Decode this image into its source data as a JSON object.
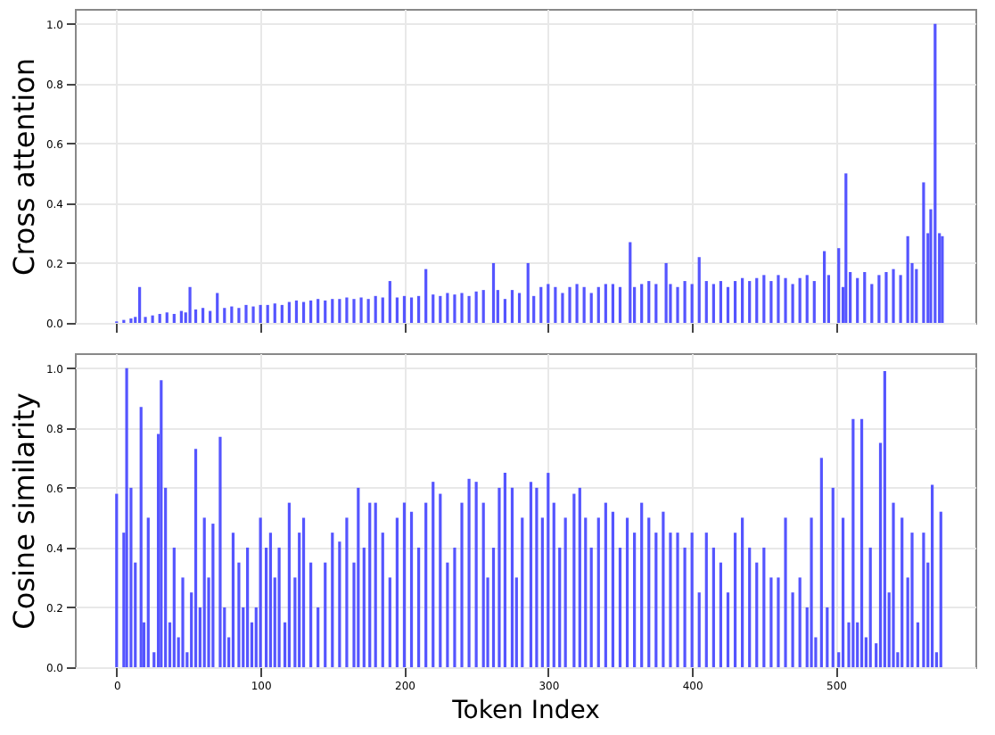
{
  "chart_data": [
    {
      "type": "bar",
      "ylabel": "Cross attention",
      "color": "#4c4cff",
      "grid": true,
      "tick_labels": "y",
      "xlim": [
        -29,
        597
      ],
      "ylim": [
        0,
        1.05
      ],
      "xticks": [
        0,
        100,
        200,
        300,
        400,
        500
      ],
      "yticks": [
        {
          "value": 0,
          "label": "0.0"
        },
        {
          "value": 0.2,
          "label": "0.2"
        },
        {
          "value": 0.4,
          "label": "0.4"
        },
        {
          "value": 0.6,
          "label": "0.6"
        },
        {
          "value": 0.8,
          "label": "0.8"
        },
        {
          "value": 1,
          "label": "1.0"
        }
      ],
      "x": [
        0,
        5,
        10,
        13,
        16,
        20,
        25,
        30,
        35,
        40,
        45,
        48,
        51,
        55,
        60,
        65,
        70,
        75,
        80,
        85,
        90,
        95,
        100,
        105,
        110,
        115,
        120,
        125,
        130,
        135,
        140,
        145,
        150,
        155,
        160,
        165,
        170,
        175,
        180,
        185,
        190,
        195,
        200,
        205,
        210,
        215,
        220,
        225,
        230,
        235,
        240,
        245,
        250,
        255,
        262,
        265,
        270,
        275,
        280,
        286,
        290,
        295,
        300,
        305,
        310,
        315,
        320,
        325,
        330,
        335,
        340,
        345,
        350,
        357,
        360,
        365,
        370,
        375,
        382,
        385,
        390,
        395,
        400,
        405,
        410,
        415,
        420,
        425,
        430,
        435,
        440,
        445,
        450,
        455,
        460,
        465,
        470,
        475,
        480,
        485,
        492,
        495,
        502,
        505,
        507,
        510,
        515,
        520,
        525,
        530,
        535,
        540,
        545,
        550,
        553,
        556,
        561,
        564,
        566,
        569,
        572,
        574
      ],
      "values": [
        0.005,
        0.01,
        0.015,
        0.02,
        0.12,
        0.02,
        0.025,
        0.03,
        0.035,
        0.03,
        0.04,
        0.035,
        0.12,
        0.045,
        0.05,
        0.04,
        0.1,
        0.05,
        0.055,
        0.05,
        0.06,
        0.055,
        0.06,
        0.06,
        0.065,
        0.06,
        0.07,
        0.075,
        0.07,
        0.075,
        0.08,
        0.075,
        0.08,
        0.08,
        0.085,
        0.08,
        0.085,
        0.08,
        0.09,
        0.085,
        0.14,
        0.085,
        0.09,
        0.085,
        0.09,
        0.18,
        0.095,
        0.09,
        0.1,
        0.095,
        0.1,
        0.09,
        0.105,
        0.11,
        0.2,
        0.11,
        0.08,
        0.11,
        0.1,
        0.2,
        0.09,
        0.12,
        0.13,
        0.12,
        0.1,
        0.12,
        0.13,
        0.12,
        0.1,
        0.12,
        0.13,
        0.13,
        0.12,
        0.27,
        0.12,
        0.13,
        0.14,
        0.13,
        0.2,
        0.13,
        0.12,
        0.14,
        0.13,
        0.22,
        0.14,
        0.13,
        0.14,
        0.12,
        0.14,
        0.15,
        0.14,
        0.15,
        0.16,
        0.14,
        0.16,
        0.15,
        0.13,
        0.15,
        0.16,
        0.14,
        0.24,
        0.16,
        0.25,
        0.12,
        0.5,
        0.17,
        0.15,
        0.17,
        0.13,
        0.16,
        0.17,
        0.18,
        0.16,
        0.29,
        0.2,
        0.18,
        0.47,
        0.3,
        0.38,
        1.0,
        0.3,
        0.29
      ]
    },
    {
      "type": "bar",
      "ylabel": "Cosine similarity",
      "xlabel": "Token Index",
      "color": "#4c4cff",
      "grid": true,
      "xlim": [
        -29,
        597
      ],
      "ylim": [
        0,
        1.05
      ],
      "xticks": [
        0,
        100,
        200,
        300,
        400,
        500
      ],
      "yticks": [
        {
          "value": 0,
          "label": "0.0"
        },
        {
          "value": 0.2,
          "label": "0.2"
        },
        {
          "value": 0.4,
          "label": "0.4"
        },
        {
          "value": 0.6,
          "label": "0.6"
        },
        {
          "value": 0.8,
          "label": "0.8"
        },
        {
          "value": 1,
          "label": "1.0"
        }
      ],
      "x": [
        0,
        5,
        7,
        10,
        13,
        17,
        19,
        22,
        26,
        29,
        31,
        34,
        37,
        40,
        43,
        46,
        49,
        52,
        55,
        58,
        61,
        64,
        67,
        70,
        72,
        75,
        78,
        81,
        85,
        88,
        91,
        94,
        97,
        100,
        104,
        107,
        110,
        113,
        117,
        120,
        124,
        127,
        130,
        135,
        140,
        145,
        150,
        155,
        160,
        165,
        168,
        172,
        176,
        180,
        185,
        190,
        195,
        200,
        205,
        210,
        215,
        220,
        225,
        230,
        235,
        240,
        245,
        250,
        255,
        258,
        262,
        266,
        270,
        275,
        278,
        282,
        288,
        292,
        296,
        300,
        304,
        308,
        312,
        318,
        322,
        326,
        330,
        335,
        340,
        345,
        350,
        355,
        360,
        365,
        370,
        375,
        380,
        385,
        390,
        395,
        400,
        405,
        410,
        415,
        420,
        425,
        430,
        435,
        440,
        445,
        450,
        455,
        460,
        465,
        470,
        475,
        480,
        483,
        486,
        490,
        494,
        498,
        502,
        505,
        509,
        512,
        515,
        518,
        521,
        524,
        528,
        531,
        534,
        537,
        540,
        543,
        546,
        550,
        553,
        557,
        561,
        564,
        567,
        570,
        573
      ],
      "values": [
        0.58,
        0.45,
        1.0,
        0.6,
        0.35,
        0.87,
        0.15,
        0.5,
        0.05,
        0.78,
        0.96,
        0.6,
        0.15,
        0.4,
        0.1,
        0.3,
        0.05,
        0.25,
        0.73,
        0.2,
        0.5,
        0.3,
        0.48,
        0.0,
        0.77,
        0.2,
        0.1,
        0.45,
        0.35,
        0.2,
        0.4,
        0.15,
        0.2,
        0.5,
        0.4,
        0.45,
        0.3,
        0.4,
        0.15,
        0.55,
        0.3,
        0.45,
        0.5,
        0.35,
        0.2,
        0.35,
        0.45,
        0.42,
        0.5,
        0.35,
        0.6,
        0.4,
        0.55,
        0.55,
        0.45,
        0.3,
        0.5,
        0.55,
        0.52,
        0.4,
        0.55,
        0.62,
        0.58,
        0.35,
        0.4,
        0.55,
        0.63,
        0.62,
        0.55,
        0.3,
        0.4,
        0.6,
        0.65,
        0.6,
        0.3,
        0.5,
        0.62,
        0.6,
        0.5,
        0.65,
        0.55,
        0.4,
        0.5,
        0.58,
        0.6,
        0.5,
        0.4,
        0.5,
        0.55,
        0.52,
        0.4,
        0.5,
        0.45,
        0.55,
        0.5,
        0.45,
        0.52,
        0.45,
        0.45,
        0.4,
        0.45,
        0.25,
        0.45,
        0.4,
        0.35,
        0.25,
        0.45,
        0.5,
        0.4,
        0.35,
        0.4,
        0.3,
        0.3,
        0.5,
        0.25,
        0.3,
        0.2,
        0.5,
        0.1,
        0.7,
        0.2,
        0.6,
        0.05,
        0.5,
        0.15,
        0.83,
        0.15,
        0.83,
        0.1,
        0.4,
        0.08,
        0.75,
        0.99,
        0.25,
        0.55,
        0.05,
        0.5,
        0.3,
        0.45,
        0.15,
        0.45,
        0.35,
        0.61,
        0.05,
        0.52
      ]
    }
  ]
}
